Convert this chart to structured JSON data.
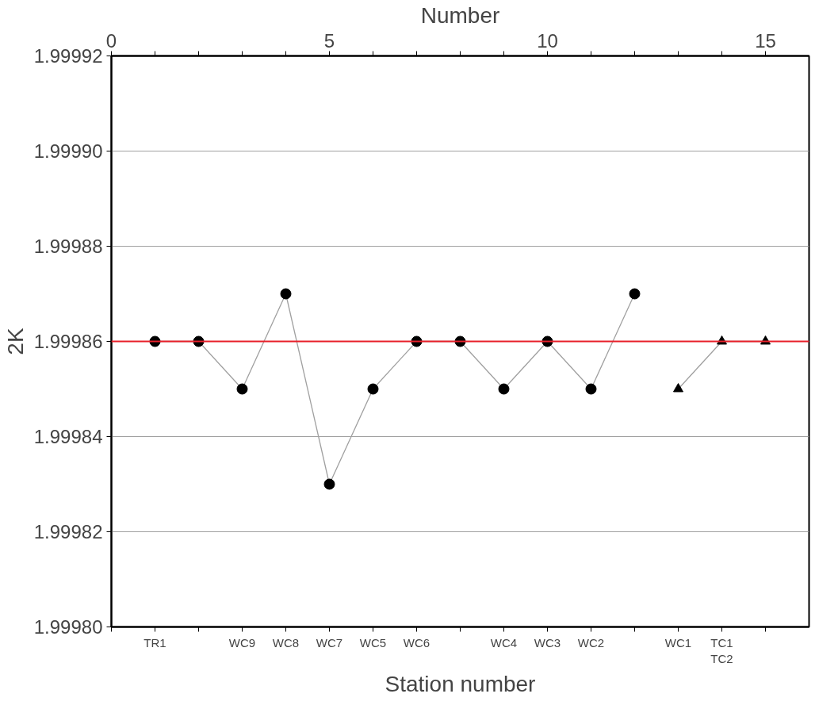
{
  "chart_data": {
    "type": "line",
    "xlabel": "Station number",
    "ylabel": "2K",
    "x2label": "Number",
    "categories": [
      "TR1",
      null,
      "WC9",
      "WC8",
      "WC7",
      "WC5",
      "WC6",
      null,
      "WC4",
      "WC3",
      "WC2",
      null,
      "WC1",
      "TC1\nTC2",
      null
    ],
    "x2lim": [
      0,
      16
    ],
    "x2ticks": [
      0,
      {
        "value": 1,
        "label": null
      },
      {
        "value": 2,
        "label": null
      },
      {
        "value": 3,
        "label": null
      },
      {
        "value": 4,
        "label": null
      },
      5,
      {
        "value": 6,
        "label": null
      },
      {
        "value": 7,
        "label": null
      },
      {
        "value": 8,
        "label": null
      },
      {
        "value": 9,
        "label": null
      },
      10,
      {
        "value": 11,
        "label": null
      },
      {
        "value": 12,
        "label": null
      },
      {
        "value": 13,
        "label": null
      },
      {
        "value": 14,
        "label": null
      },
      15
    ],
    "ylim": [
      1.9998,
      1.99992
    ],
    "yticks": [
      {
        "value": 1.9998,
        "label": "1.99980"
      },
      {
        "value": 1.99982,
        "label": "1.99982"
      },
      {
        "value": 1.99984,
        "label": "1.99984"
      },
      {
        "value": 1.99986,
        "label": "1.99986"
      },
      {
        "value": 1.99988,
        "label": "1.99988"
      },
      {
        "value": 1.9999,
        "label": "1.99990"
      },
      {
        "value": 1.99992,
        "label": "1.99992"
      }
    ],
    "grid": "y",
    "line_style": "solid",
    "ref_lines": [
      {
        "axis": "y",
        "value": 1.99986,
        "color": "#e8202a",
        "line_style": "solid"
      }
    ],
    "series": [
      {
        "color": "#000000",
        "marker": "circle",
        "values": [
          1.99986,
          1.99986,
          1.99985,
          1.99987,
          1.99983,
          1.99985,
          1.99986,
          1.99986,
          1.99985,
          1.99986,
          1.99985,
          1.99987,
          null,
          null,
          null
        ]
      },
      {
        "color": "#000000",
        "marker": "triangle",
        "values": [
          null,
          null,
          null,
          null,
          null,
          null,
          null,
          null,
          null,
          null,
          null,
          null,
          1.99985,
          1.99986,
          1.99986
        ]
      }
    ]
  }
}
